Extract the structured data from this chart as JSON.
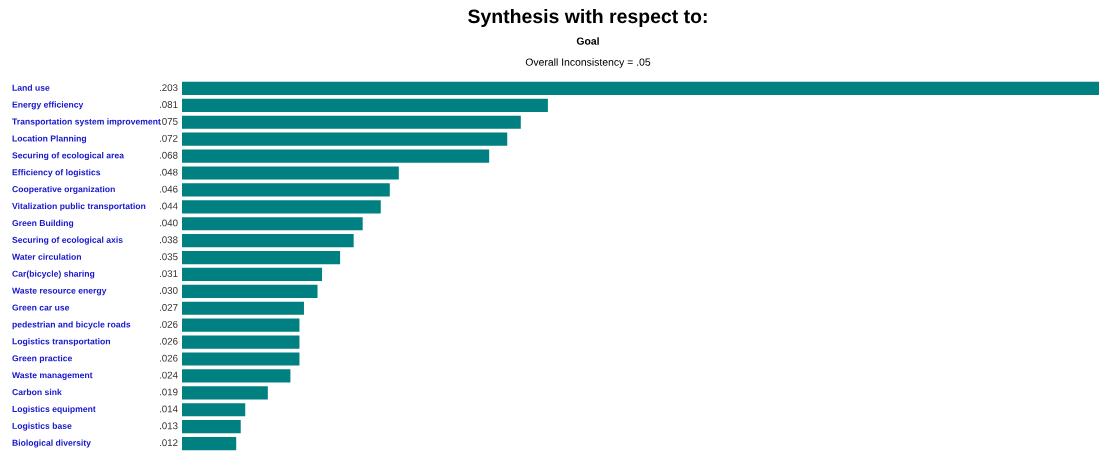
{
  "chart_data": {
    "type": "bar",
    "orientation": "horizontal",
    "title": "Synthesis with respect to:",
    "subtitle": "Goal",
    "annotations": [
      "Overall Inconsistency = .05"
    ],
    "categories": [
      "Land use",
      "Energy efficiency",
      "Transportation system improvement",
      "Location Planning",
      "Securing of ecological area",
      "Efficiency of logistics",
      "Cooperative organization",
      "Vitalization public transportation",
      "Green Building",
      "Securing of ecological axis",
      "Water circulation",
      "Car(bicycle) sharing",
      "Waste resource energy",
      "Green car use",
      "pedestrian and bicycle roads",
      "Logistics transportation",
      "Green practice",
      "Waste management",
      "Carbon sink",
      "Logistics equipment",
      "Logistics base",
      "Biological diversity"
    ],
    "values": [
      0.203,
      0.081,
      0.075,
      0.072,
      0.068,
      0.048,
      0.046,
      0.044,
      0.04,
      0.038,
      0.035,
      0.031,
      0.03,
      0.027,
      0.026,
      0.026,
      0.026,
      0.024,
      0.019,
      0.014,
      0.013,
      0.012
    ],
    "value_labels": [
      ".203",
      ".081",
      ".075",
      ".072",
      ".068",
      ".048",
      ".046",
      ".044",
      ".040",
      ".038",
      ".035",
      ".031",
      ".030",
      ".027",
      ".026",
      ".026",
      ".026",
      ".024",
      ".019",
      ".014",
      ".013",
      ".012"
    ],
    "color": "#008080"
  }
}
